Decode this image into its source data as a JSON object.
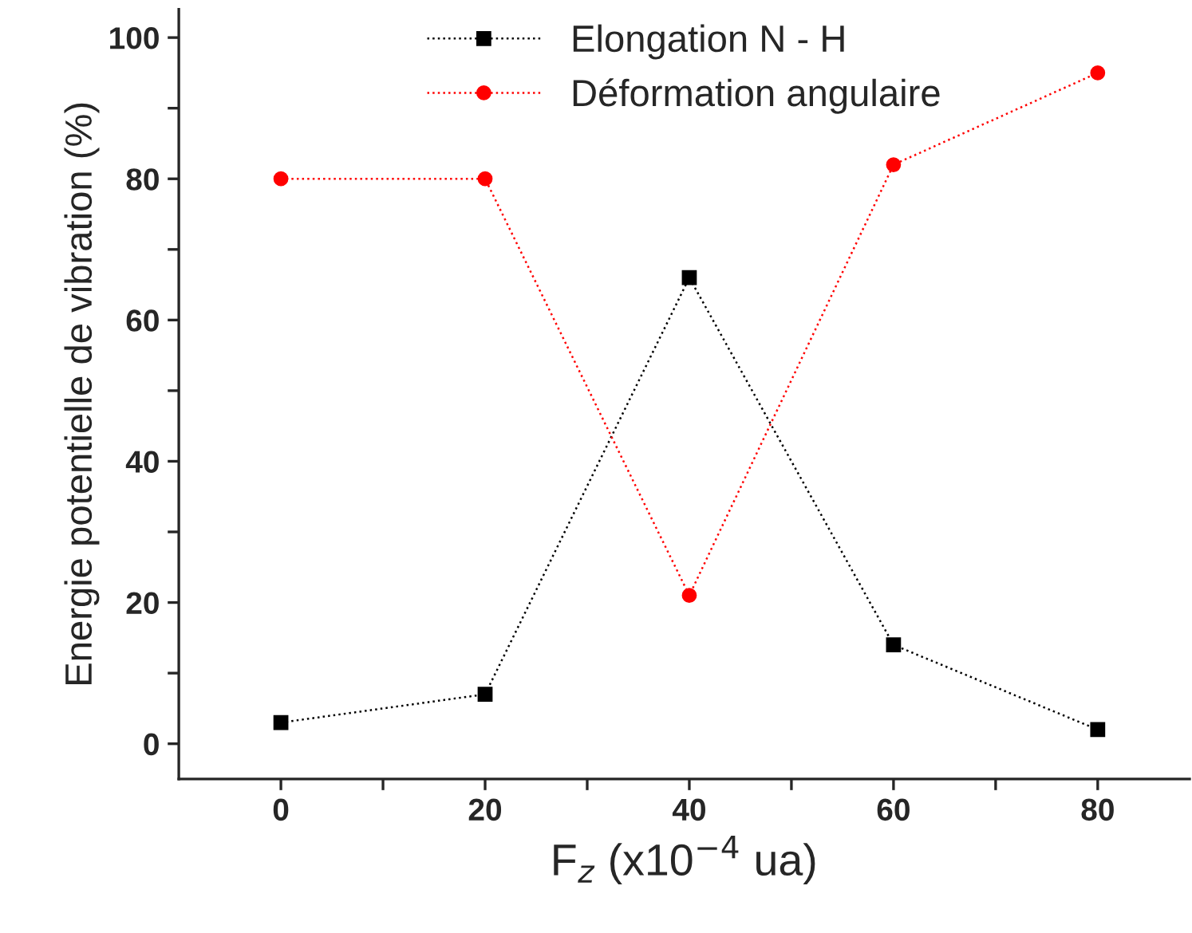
{
  "chart_data": {
    "type": "line",
    "xlabel": "F$_{z}$ (x10$^{−4}$ ua)",
    "ylabel": "Energie potentielle de vibration (%)",
    "x": [
      0,
      20,
      40,
      60,
      80
    ],
    "series": [
      {
        "name": "Elongation N - H",
        "color": "#000000",
        "marker": "square",
        "values": [
          3,
          7,
          66,
          14,
          2
        ]
      },
      {
        "name": "Déformation angulaire",
        "color": "#ff0000",
        "marker": "circle",
        "values": [
          80,
          80,
          21,
          82,
          95
        ]
      }
    ],
    "line_style": "dotted",
    "xlim": [
      -10,
      89
    ],
    "ylim": [
      -5,
      104
    ],
    "xticks": [
      0,
      {
        "value": 10,
        "label": null
      },
      20,
      {
        "value": 30,
        "label": null
      },
      40,
      {
        "value": 50,
        "label": null
      },
      60,
      {
        "value": 70,
        "label": null
      },
      80
    ],
    "yticks": [
      0,
      {
        "value": 10,
        "label": null
      },
      20,
      {
        "value": 30,
        "label": null
      },
      40,
      {
        "value": 50,
        "label": null
      },
      60,
      {
        "value": 70,
        "label": null
      },
      80,
      {
        "value": 90,
        "label": null
      },
      100
    ],
    "grid": false,
    "legend": "top"
  }
}
